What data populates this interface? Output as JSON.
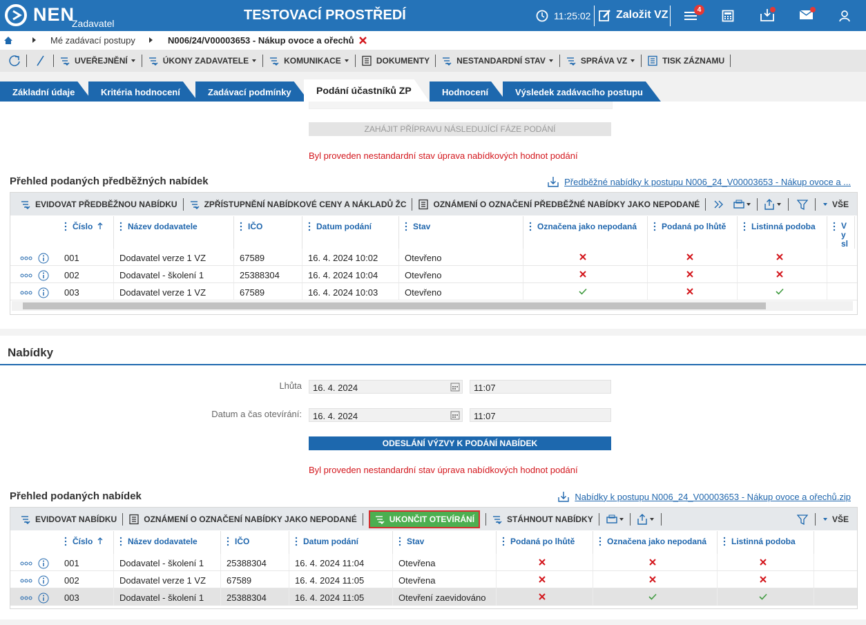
{
  "header": {
    "logo": "NEN",
    "role": "Zadavatel",
    "title": "TESTOVACÍ PROSTŘEDÍ",
    "time": "11:25:02",
    "create": "Založit VZ",
    "badge": "4"
  },
  "breadcrumb": [
    "Mé zadávací postupy",
    "N006/24/V00003653 - Nákup ovoce a ořechů"
  ],
  "toolbar": [
    "UVEŘEJNĚNÍ",
    "ÚKONY ZADAVATELE",
    "KOMUNIKACE",
    "DOKUMENTY",
    "NESTANDARDNÍ STAV",
    "SPRÁVA VZ",
    "TISK ZÁZNAMU"
  ],
  "tabs": {
    "items": [
      "Základní údaje",
      "Kritéria hodnocení",
      "Zadávací podmínky",
      "Podání účastníků ZP",
      "Hodnocení",
      "Výsledek zadávacího postupu"
    ],
    "active": 3
  },
  "top": {
    "button": "ZAHÁJIT PŘÍPRAVU NÁSLEDUJÍCÍ FÁZE PODÁNÍ",
    "message": "Byl proveden nestandardní stav úprava nabídkových hodnot podání"
  },
  "preliminary": {
    "title": "Přehled podaných předběžných nabídek",
    "link": "Předběžné nabídky k postupu N006_24_V00003653 - Nákup ovoce a ...",
    "actions": [
      "EVIDOVAT PŘEDBĚŽNOU NABÍDKU",
      "ZPŘÍSTUPNĚNÍ NABÍDKOVÉ CENY A NÁKLADŮ ŽC",
      "OZNÁMENÍ O OZNAČENÍ PŘEDBĚŽNÉ NABÍDKY JAKO NEPODANÉ"
    ],
    "filter": "VŠE",
    "columns": [
      "Číslo",
      "Název dodavatele",
      "IČO",
      "Datum podání",
      "Stav",
      "Označena jako nepodaná",
      "Podaná po lhůtě",
      "Listinná podoba",
      "Vy sl"
    ],
    "rows": [
      [
        "001",
        "Dodavatel verze 1 VZ",
        "67589",
        "16. 4. 2024 10:02",
        "Otevřeno",
        false,
        false,
        false
      ],
      [
        "002",
        "Dodavatel - školení 1",
        "25388304",
        "16. 4. 2024 10:04",
        "Otevřeno",
        false,
        false,
        false
      ],
      [
        "003",
        "Dodavatel verze 1 VZ",
        "67589",
        "16. 4. 2024 10:03",
        "Otevřeno",
        true,
        false,
        true
      ]
    ]
  },
  "offers_form": {
    "heading": "Nabídky",
    "fields": [
      {
        "label": "Lhůta",
        "date": "16. 4. 2024",
        "time": "11:07"
      },
      {
        "label": "Datum a čas otevírání:",
        "date": "16. 4. 2024",
        "time": "11:07"
      }
    ],
    "button": "ODESLÁNÍ VÝZVY K PODÁNÍ NABÍDEK",
    "message": "Byl proveden nestandardní stav úprava nabídkových hodnot podání"
  },
  "offers": {
    "title": "Přehled podaných nabídek",
    "link": "Nabídky k postupu N006_24_V00003653 - Nákup ovoce a ořechů.zip",
    "actions": [
      "EVIDOVAT NABÍDKU",
      "OZNÁMENÍ O OZNAČENÍ NABÍDKY JAKO NEPODANÉ",
      "UKONČIT OTEVÍRÁNÍ",
      "STÁHNOUT NABÍDKY"
    ],
    "highlight_action": 2,
    "filter": "VŠE",
    "columns": [
      "Číslo",
      "Název dodavatele",
      "IČO",
      "Datum podání",
      "Stav",
      "Podaná po lhůtě",
      "Označena jako nepodaná",
      "Listinná podoba"
    ],
    "rows": [
      [
        "001",
        "Dodavatel - školení 1",
        "25388304",
        "16. 4. 2024 11:04",
        "Otevřena",
        false,
        false,
        false
      ],
      [
        "002",
        "Dodavatel verze 1 VZ",
        "67589",
        "16. 4. 2024 11:05",
        "Otevřena",
        false,
        false,
        false
      ],
      [
        "003",
        "Dodavatel - školení 1",
        "25388304",
        "16. 4. 2024 11:05",
        "Otevření zaevidováno",
        false,
        true,
        true
      ]
    ],
    "selected_row": 2
  }
}
